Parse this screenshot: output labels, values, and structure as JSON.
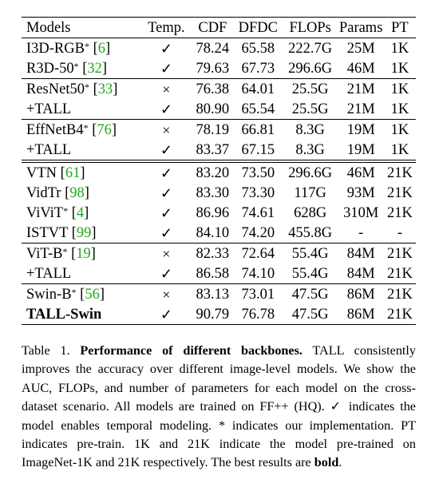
{
  "table": {
    "headers": [
      "Models",
      "Temp.",
      "CDF",
      "DFDC",
      "FLOPs",
      "Params",
      "PT"
    ],
    "rows": [
      {
        "name": "I3D-RGB",
        "star": "*",
        "ref": "6",
        "temp": "✓",
        "cdf": "78.24",
        "dfdc": "65.58",
        "flops": "222.7G",
        "params": "25M",
        "pt": "1K"
      },
      {
        "name": "R3D-50",
        "star": "*",
        "ref": "32",
        "temp": "✓",
        "cdf": "79.63",
        "dfdc": "67.73",
        "flops": "296.6G",
        "params": "46M",
        "pt": "1K"
      },
      {
        "name": "ResNet50",
        "star": "*",
        "ref": "33",
        "temp": "×",
        "cdf": "76.38",
        "dfdc": "64.01",
        "flops": "25.5G",
        "params": "21M",
        "pt": "1K"
      },
      {
        "name": "+TALL",
        "temp": "✓",
        "cdf": "80.90",
        "dfdc": "65.54",
        "flops": "25.5G",
        "params": "21M",
        "pt": "1K"
      },
      {
        "name": "EffNetB4",
        "star": "*",
        "ref": "76",
        "temp": "×",
        "cdf": "78.19",
        "dfdc": "66.81",
        "flops": "8.3G",
        "params": "19M",
        "pt": "1K"
      },
      {
        "name": "+TALL",
        "temp": "✓",
        "cdf": "83.37",
        "dfdc": "67.15",
        "flops": "8.3G",
        "params": "19M",
        "pt": "1K"
      },
      {
        "name": "VTN",
        "ref": "61",
        "temp": "✓",
        "cdf": "83.20",
        "dfdc": "73.50",
        "flops": "296.6G",
        "params": "46M",
        "pt": "21K"
      },
      {
        "name": "VidTr",
        "ref": "98",
        "temp": "✓",
        "cdf": "83.30",
        "dfdc": "73.30",
        "flops": "117G",
        "params": "93M",
        "pt": "21K"
      },
      {
        "name": "ViViT",
        "star": "*",
        "ref": "4",
        "temp": "✓",
        "cdf": "86.96",
        "dfdc": "74.61",
        "flops": "628G",
        "params": "310M",
        "pt": "21K"
      },
      {
        "name": "ISTVT",
        "ref": "99",
        "temp": "✓",
        "cdf": "84.10",
        "dfdc": "74.20",
        "flops": "455.8G",
        "params": "-",
        "pt": "-"
      },
      {
        "name": "ViT-B",
        "star": "*",
        "ref": "19",
        "temp": "×",
        "cdf": "82.33",
        "dfdc": "72.64",
        "flops": "55.4G",
        "params": "84M",
        "pt": "21K"
      },
      {
        "name": "+TALL",
        "temp": "✓",
        "cdf": "86.58",
        "dfdc": "74.10",
        "flops": "55.4G",
        "params": "84M",
        "pt": "21K"
      },
      {
        "name": "Swin-B",
        "star": "*",
        "ref": "56",
        "temp": "×",
        "cdf": "83.13",
        "dfdc": "73.01",
        "flops": "47.5G",
        "params": "86M",
        "pt": "21K"
      },
      {
        "name": "TALL-Swin",
        "temp": "✓",
        "cdf": "90.79",
        "dfdc": "76.78",
        "flops": "47.5G",
        "params": "86M",
        "pt": "21K"
      }
    ]
  },
  "caption": {
    "prefix": "Table 1. ",
    "title": "Performance of different backbones.",
    "body": " TALL consistently improves the accuracy over different image-level models. We show the AUC, FLOPs, and number of parameters for each model on the cross-dataset scenario. All models are trained on FF++ (HQ). ✓ indicates the model enables temporal modeling. * indicates our implementation. PT indicates pre-train. 1K and 21K indicate the model pre-trained on ImageNet-1K and 21K respectively. The best results are ",
    "bold_word": "bold",
    "end": "."
  },
  "colors": {
    "citation": "#1fa81f",
    "text": "#000000"
  }
}
